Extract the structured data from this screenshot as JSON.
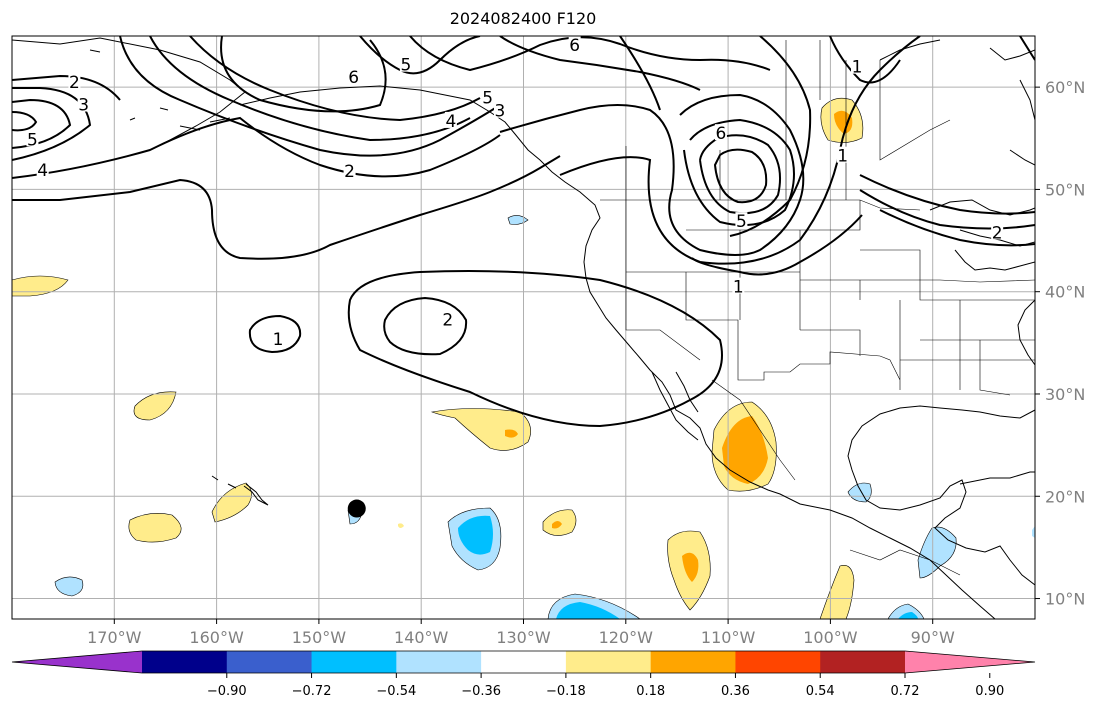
{
  "title": "2024082400 F120",
  "map": {
    "lon_range": [
      -180,
      -80
    ],
    "lat_range": [
      8,
      65
    ],
    "lon_ticks": [
      {
        "value": -170,
        "label": "170°W"
      },
      {
        "value": -160,
        "label": "160°W"
      },
      {
        "value": -150,
        "label": "150°W"
      },
      {
        "value": -140,
        "label": "140°W"
      },
      {
        "value": -130,
        "label": "130°W"
      },
      {
        "value": -120,
        "label": "120°W"
      },
      {
        "value": -110,
        "label": "110°W"
      },
      {
        "value": -100,
        "label": "100°W"
      },
      {
        "value": -90,
        "label": "90°W"
      }
    ],
    "lat_ticks": [
      {
        "value": 60,
        "label": "60°N"
      },
      {
        "value": 50,
        "label": "50°N"
      },
      {
        "value": 40,
        "label": "40°N"
      },
      {
        "value": 30,
        "label": "30°N"
      },
      {
        "value": 20,
        "label": "20°N"
      },
      {
        "value": 10,
        "label": "10°N"
      }
    ],
    "grid": true,
    "marker": {
      "lon": -146.3,
      "lat": 18.8,
      "name": "black-dot"
    }
  },
  "colorbar": {
    "colors": [
      "#9932cc",
      "#00008b",
      "#3a5fcd",
      "#00bfff",
      "#b0e2ff",
      "#ffffff",
      "#ffec8b",
      "#ffa500",
      "#ff4500",
      "#b22222",
      "#ff82ab"
    ],
    "tick_labels": [
      "−0.90",
      "−0.72",
      "−0.54",
      "−0.36",
      "−0.18",
      "0.18",
      "0.36",
      "0.54",
      "0.72",
      "0.90"
    ]
  },
  "contour_labels": [
    {
      "text": "2",
      "lon": -173.9,
      "lat": 60.4
    },
    {
      "text": "3",
      "lon": -173.0,
      "lat": 58.2
    },
    {
      "text": "5",
      "lon": -178.0,
      "lat": 54.8
    },
    {
      "text": "4",
      "lon": -177.0,
      "lat": 51.8
    },
    {
      "text": "6",
      "lon": -146.6,
      "lat": 60.9
    },
    {
      "text": "5",
      "lon": -141.5,
      "lat": 62.1
    },
    {
      "text": "6",
      "lon": -125.0,
      "lat": 64.0
    },
    {
      "text": "5",
      "lon": -133.5,
      "lat": 58.9
    },
    {
      "text": "3",
      "lon": -132.3,
      "lat": 57.6
    },
    {
      "text": "4",
      "lon": -137.1,
      "lat": 56.6
    },
    {
      "text": "2",
      "lon": -147.0,
      "lat": 51.7
    },
    {
      "text": "6",
      "lon": -110.7,
      "lat": 55.4
    },
    {
      "text": "1",
      "lon": -97.4,
      "lat": 61.9
    },
    {
      "text": "1",
      "lon": -98.8,
      "lat": 53.2
    },
    {
      "text": "5",
      "lon": -108.7,
      "lat": 46.8
    },
    {
      "text": "2",
      "lon": -83.7,
      "lat": 45.7
    },
    {
      "text": "1",
      "lon": -109.0,
      "lat": 40.4
    },
    {
      "text": "2",
      "lon": -137.4,
      "lat": 37.2
    },
    {
      "text": "1",
      "lon": -154.0,
      "lat": 35.3
    }
  ]
}
